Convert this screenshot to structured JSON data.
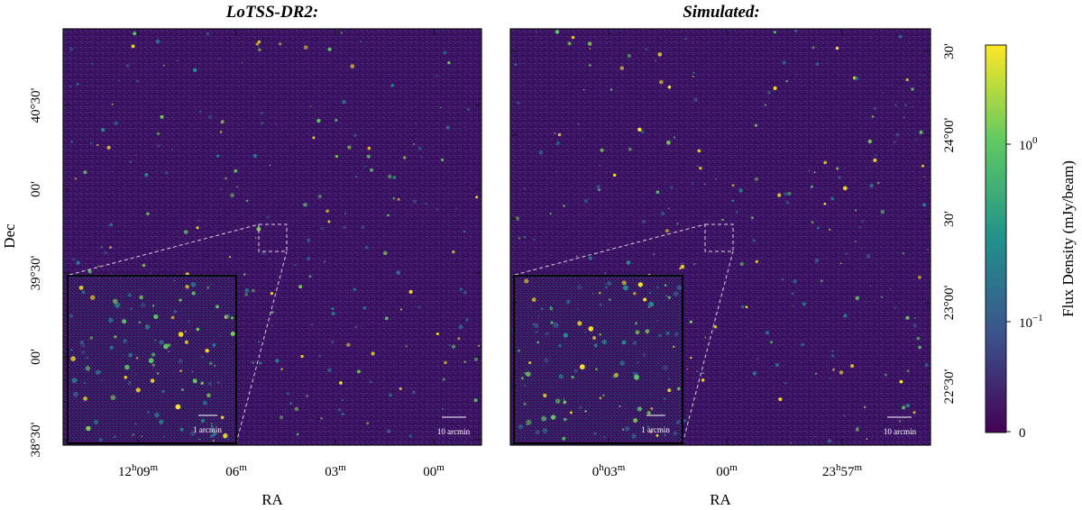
{
  "panels": [
    {
      "title": "LoTSS-DR2:",
      "xlabel": "RA",
      "ylabel": "Dec",
      "x_ticks": [
        {
          "h": "12",
          "hs": "h",
          "m": "09",
          "ms": "m"
        },
        {
          "h": "",
          "hs": "",
          "m": "06",
          "ms": "m"
        },
        {
          "h": "",
          "hs": "",
          "m": "03",
          "ms": "m"
        },
        {
          "h": "",
          "hs": "",
          "m": "00",
          "ms": "m"
        }
      ],
      "y_ticks": [
        "40°30'",
        "00'",
        "39°30'",
        "00'",
        "38°30'"
      ],
      "inset_scalebar": "1 arcmin",
      "main_scalebar": "10 arcmin"
    },
    {
      "title": "Simulated:",
      "xlabel": "RA",
      "x_ticks": [
        {
          "h": "0",
          "hs": "h",
          "m": "03",
          "ms": "m"
        },
        {
          "h": "",
          "hs": "",
          "m": "00",
          "ms": "m"
        },
        {
          "h": "23",
          "hs": "h",
          "m": "57",
          "ms": "m"
        }
      ],
      "y_ticks_right": [
        "30'",
        "24°00'",
        "30'",
        "23°00'",
        "22°30'"
      ],
      "inset_scalebar": "1 arcmin",
      "main_scalebar": "10 arcmin"
    }
  ],
  "colorbar": {
    "label": "Flux Density (mJy/beam)",
    "ticks": [
      {
        "base": "10",
        "exp": "0"
      },
      {
        "base": "10",
        "exp": "−1"
      },
      {
        "base": "0",
        "exp": ""
      }
    ],
    "colormap": [
      "#440154",
      "#3b528b",
      "#21918c",
      "#5ec962",
      "#fde725"
    ]
  },
  "colors": {
    "background": "#3b0f5c",
    "frame": "#111111",
    "annotation": "#d9d2e0"
  }
}
